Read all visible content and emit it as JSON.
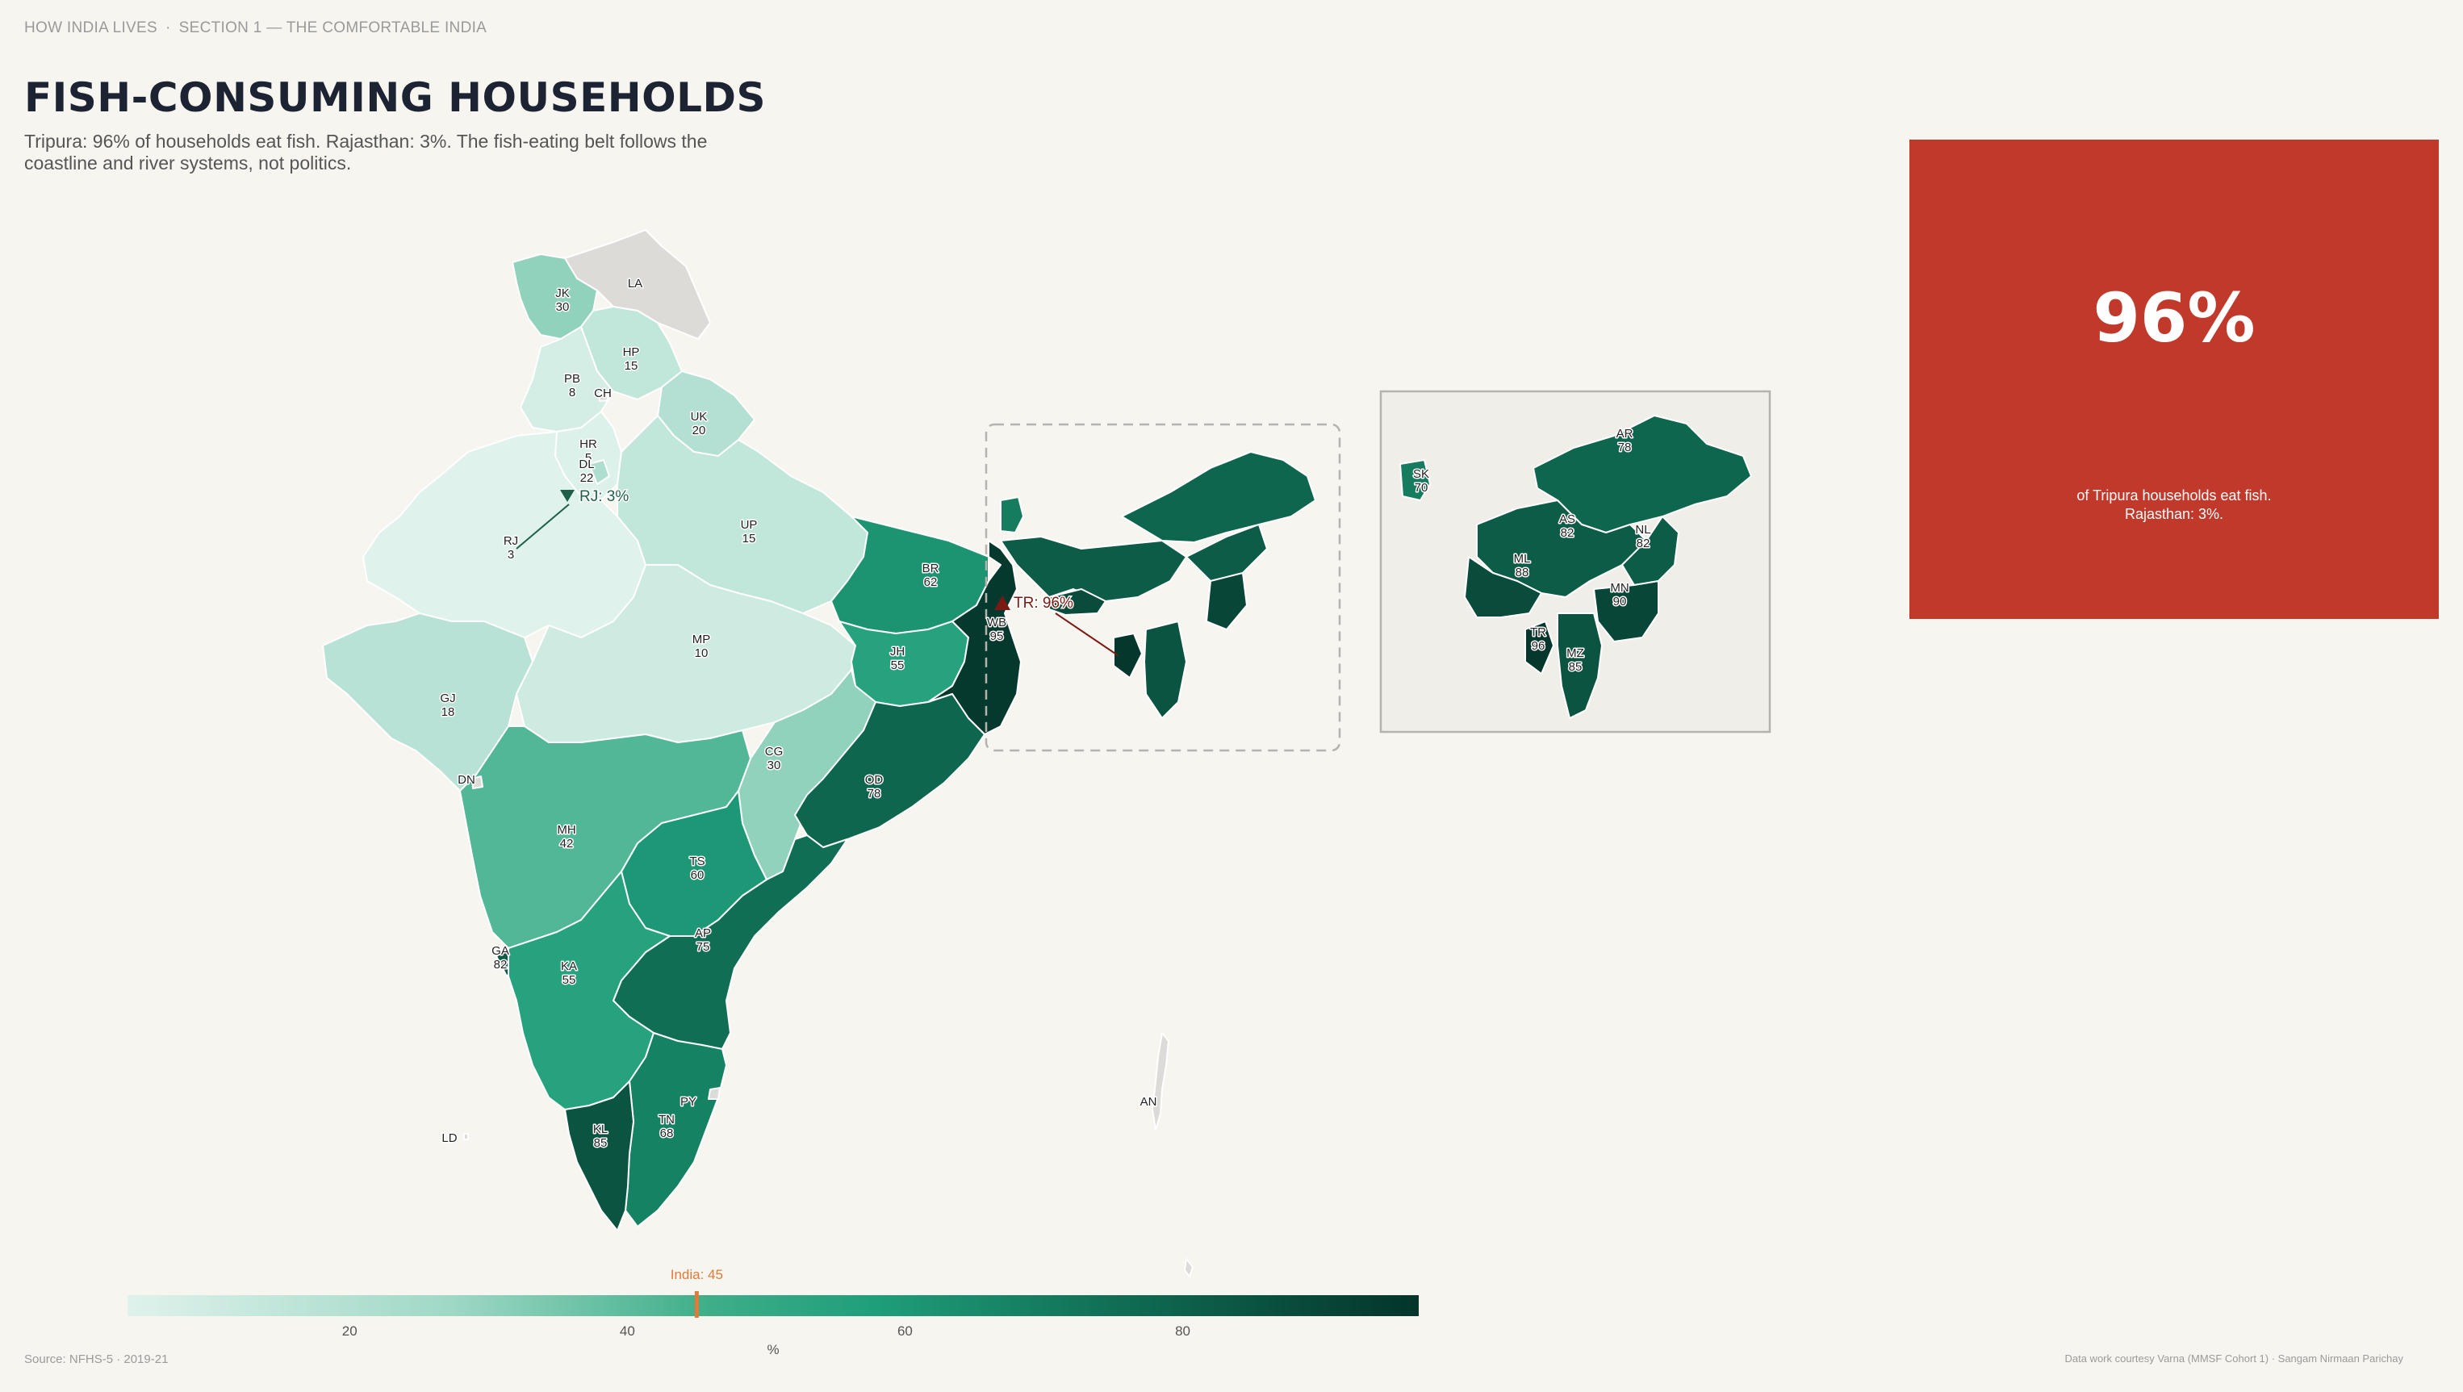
{
  "header": {
    "section": "HOW INDIA LIVES",
    "separator": "·",
    "subsection": "SECTION 1 — THE COMFORTABLE INDIA",
    "title": "FISH-CONSUMING HOUSEHOLDS",
    "subtitle": "Tripura: 96% of households eat fish. Rajasthan: 3%. The fish-eating belt follows the coastline and river systems, not politics."
  },
  "colors": {
    "background": "#f7f5f0",
    "accent": "#c0392b",
    "scale_low": "#dff2ec",
    "scale_mid": "#1f9e7a",
    "scale_high": "#04342a",
    "no_data": "#dcdbd8",
    "india_marker": "#e07b39"
  },
  "map_data": {
    "metric_unit": "%",
    "states": [
      {
        "code": "JK",
        "value": "30"
      },
      {
        "code": "LA",
        "value": null
      },
      {
        "code": "HP",
        "value": "15"
      },
      {
        "code": "PB",
        "value": "8"
      },
      {
        "code": "CH",
        "value": null
      },
      {
        "code": "UK",
        "value": "20"
      },
      {
        "code": "HR",
        "value": "5"
      },
      {
        "code": "DL",
        "value": "22"
      },
      {
        "code": "RJ",
        "value": "3"
      },
      {
        "code": "UP",
        "value": "15"
      },
      {
        "code": "BR",
        "value": "62"
      },
      {
        "code": "GJ",
        "value": "18"
      },
      {
        "code": "MP",
        "value": "10"
      },
      {
        "code": "JH",
        "value": "55"
      },
      {
        "code": "WB",
        "value": "95"
      },
      {
        "code": "CG",
        "value": "30"
      },
      {
        "code": "OD",
        "value": "78"
      },
      {
        "code": "DN",
        "value": null
      },
      {
        "code": "MH",
        "value": "42"
      },
      {
        "code": "TS",
        "value": "60"
      },
      {
        "code": "AP",
        "value": "75"
      },
      {
        "code": "GA",
        "value": "82"
      },
      {
        "code": "KA",
        "value": "55"
      },
      {
        "code": "PY",
        "value": null
      },
      {
        "code": "TN",
        "value": "68"
      },
      {
        "code": "KL",
        "value": "85"
      },
      {
        "code": "LD",
        "value": null
      },
      {
        "code": "AN",
        "value": null
      }
    ],
    "inset_states": [
      {
        "code": "AR",
        "value": "78"
      },
      {
        "code": "SK",
        "value": "70"
      },
      {
        "code": "AS",
        "value": "82"
      },
      {
        "code": "NL",
        "value": "82"
      },
      {
        "code": "ML",
        "value": "88"
      },
      {
        "code": "MN",
        "value": "90"
      },
      {
        "code": "TR",
        "value": "96"
      },
      {
        "code": "MZ",
        "value": "85"
      }
    ],
    "callouts": {
      "low": "RJ: 3%",
      "high": "TR: 96%"
    }
  },
  "legend": {
    "min": 4,
    "max": 97,
    "ticks": [
      "20",
      "40",
      "60",
      "80"
    ],
    "unit": "%",
    "national_label": "India: 45",
    "national_value": 45
  },
  "stat": {
    "value": "96%",
    "caption": "of Tripura households eat fish. Rajasthan: 3%."
  },
  "footer": {
    "source": "Source: NFHS-5  ·  2019-21",
    "credit": "Data work courtesy Varna (MMSF Cohort 1)  ·  Sangam Nirmaan Parichay"
  }
}
